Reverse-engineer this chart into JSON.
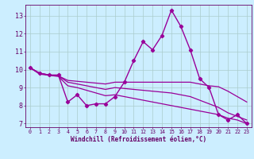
{
  "title": "",
  "xlabel": "Windchill (Refroidissement éolien,°C)",
  "ylabel": "",
  "bg_color": "#cceeff",
  "line_color": "#990099",
  "grid_color": "#aacccc",
  "axis_color": "#660066",
  "text_color": "#660066",
  "xlim": [
    -0.5,
    23.5
  ],
  "ylim": [
    6.8,
    13.6
  ],
  "yticks": [
    7,
    8,
    9,
    10,
    11,
    12,
    13
  ],
  "xticks": [
    0,
    1,
    2,
    3,
    4,
    5,
    6,
    7,
    8,
    9,
    10,
    11,
    12,
    13,
    14,
    15,
    16,
    17,
    18,
    19,
    20,
    21,
    22,
    23
  ],
  "series": [
    {
      "x": [
        0,
        1,
        2,
        3,
        4,
        5,
        6,
        7,
        8,
        9,
        10,
        11,
        12,
        13,
        14,
        15,
        16,
        17,
        18,
        19,
        20,
        21,
        22,
        23
      ],
      "y": [
        10.1,
        9.8,
        9.7,
        9.7,
        8.2,
        8.6,
        8.0,
        8.1,
        8.1,
        8.5,
        9.3,
        10.5,
        11.55,
        11.1,
        11.9,
        13.3,
        12.4,
        11.1,
        9.5,
        9.0,
        7.5,
        7.2,
        7.5,
        7.0
      ],
      "marker": "D",
      "markersize": 2.2,
      "linewidth": 1.0
    },
    {
      "x": [
        0,
        1,
        2,
        3,
        4,
        5,
        6,
        7,
        8,
        9,
        10,
        11,
        12,
        13,
        14,
        15,
        16,
        17,
        18,
        19,
        20,
        21,
        22,
        23
      ],
      "y": [
        10.1,
        9.8,
        9.7,
        9.65,
        9.4,
        9.35,
        9.3,
        9.25,
        9.2,
        9.3,
        9.3,
        9.3,
        9.3,
        9.3,
        9.3,
        9.3,
        9.3,
        9.3,
        9.2,
        9.1,
        9.05,
        8.8,
        8.5,
        8.2
      ],
      "marker": null,
      "markersize": 0,
      "linewidth": 0.9
    },
    {
      "x": [
        0,
        1,
        2,
        3,
        4,
        5,
        6,
        7,
        8,
        9,
        10,
        11,
        12,
        13,
        14,
        15,
        16,
        17,
        18,
        19,
        20,
        21,
        22,
        23
      ],
      "y": [
        10.1,
        9.8,
        9.7,
        9.65,
        9.3,
        9.2,
        9.1,
        9.0,
        8.9,
        9.0,
        8.95,
        8.9,
        8.85,
        8.8,
        8.75,
        8.7,
        8.6,
        8.5,
        8.3,
        8.1,
        7.9,
        7.6,
        7.4,
        7.2
      ],
      "marker": null,
      "markersize": 0,
      "linewidth": 0.9
    },
    {
      "x": [
        0,
        1,
        2,
        3,
        4,
        5,
        6,
        7,
        8,
        9,
        10,
        11,
        12,
        13,
        14,
        15,
        16,
        17,
        18,
        19,
        20,
        21,
        22,
        23
      ],
      "y": [
        10.1,
        9.75,
        9.68,
        9.62,
        9.1,
        9.0,
        8.85,
        8.7,
        8.55,
        8.6,
        8.5,
        8.4,
        8.3,
        8.2,
        8.1,
        8.0,
        7.9,
        7.8,
        7.7,
        7.6,
        7.5,
        7.3,
        7.2,
        7.0
      ],
      "marker": null,
      "markersize": 0,
      "linewidth": 0.9
    }
  ],
  "xlabel_fontsize": 5.5,
  "ytick_fontsize": 6.0,
  "xtick_fontsize": 4.8
}
